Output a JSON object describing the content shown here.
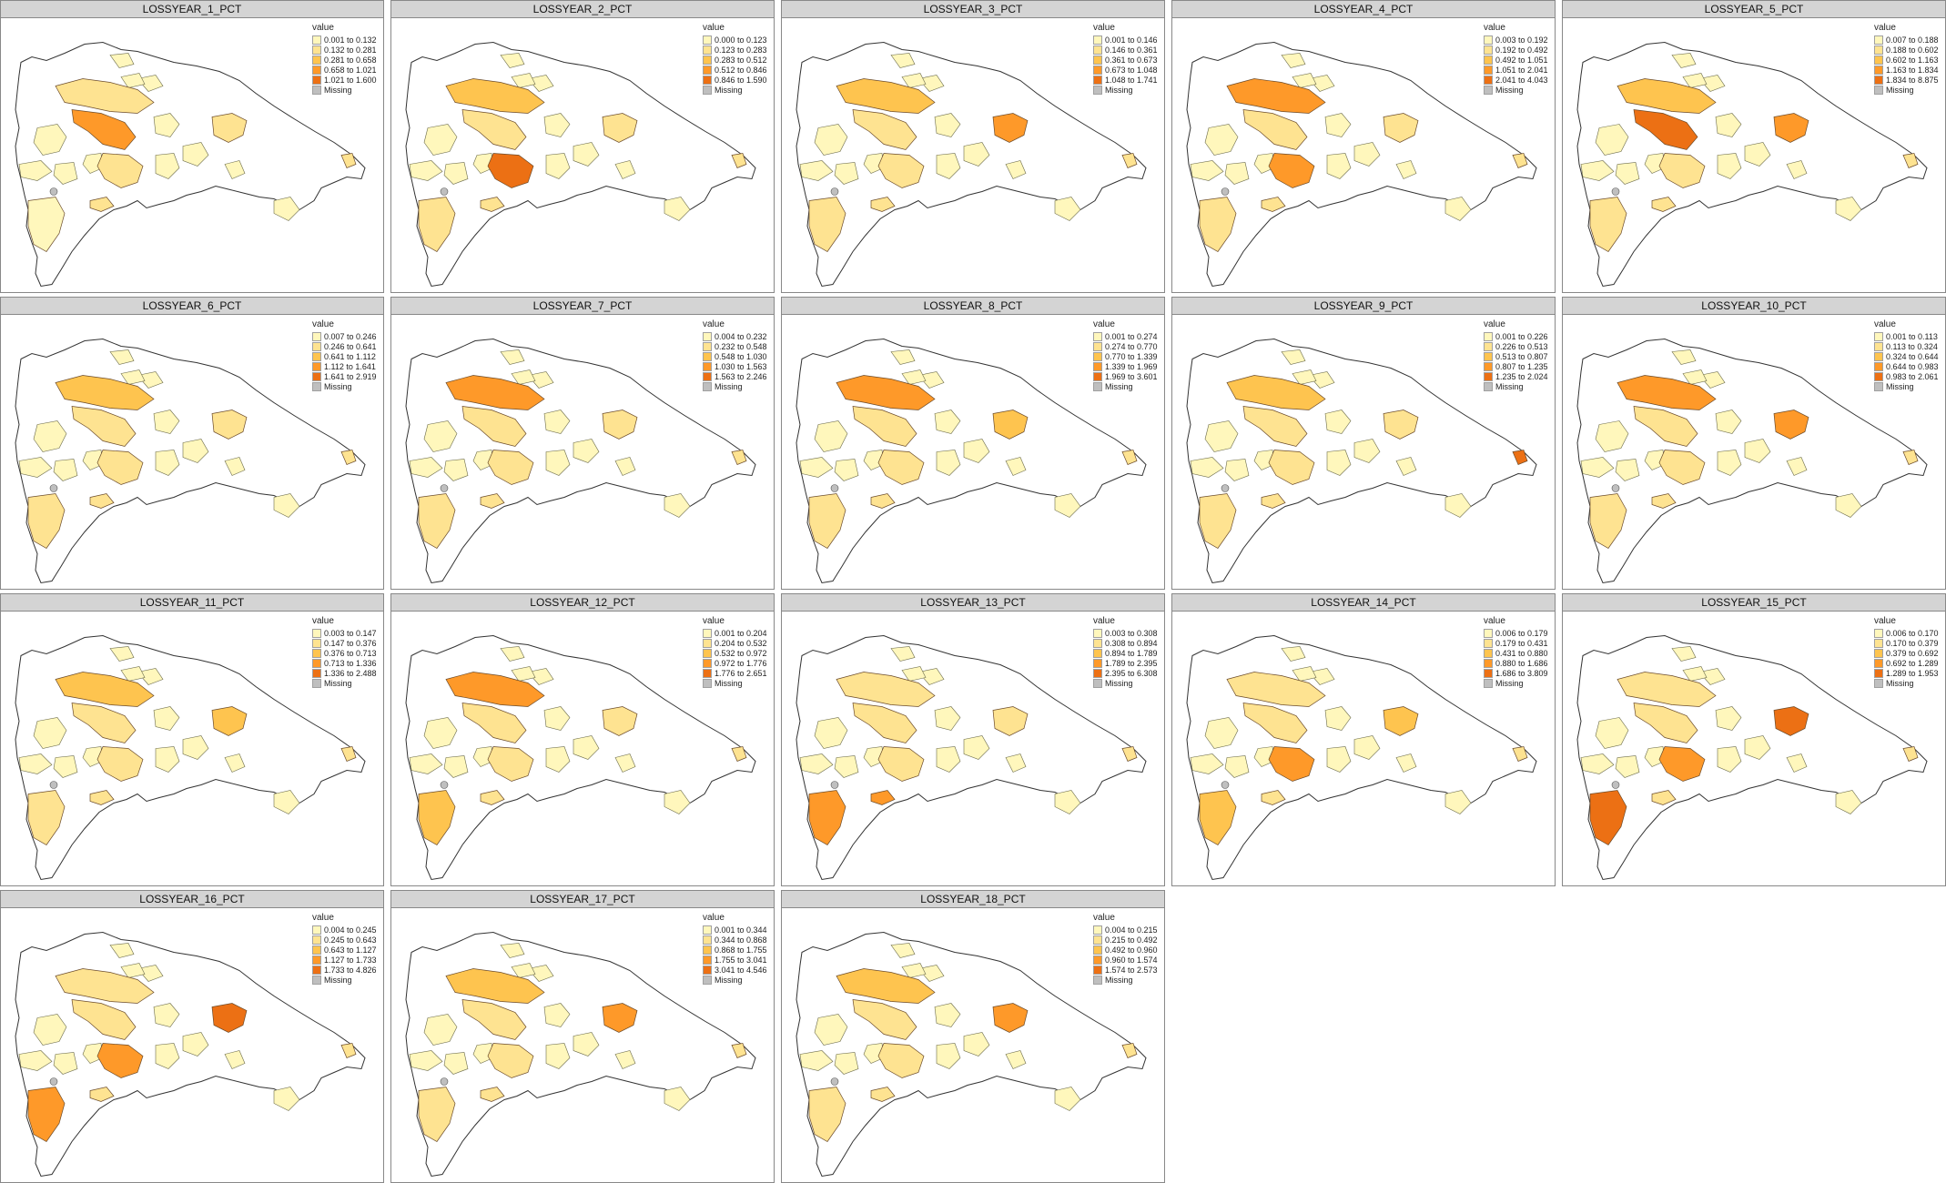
{
  "legend_title": "value",
  "missing_label": "Missing",
  "colors": {
    "class_fills": [
      "#fff7bc",
      "#fee391",
      "#fec44f",
      "#fe9929",
      "#ec7014",
      "#cc4c02"
    ],
    "missing": "#bfbfbf",
    "outline": "#333333",
    "strip_bg": "#d4d4d4"
  },
  "panels": [
    {
      "title": "LOSSYEAR_1_PCT",
      "classes": [
        "0.001 to 0.132",
        "0.132 to 0.281",
        "0.281 to 0.658",
        "0.658 to 1.021",
        "1.021 to 1.600"
      ],
      "highlight": [
        {
          "region": "northwest-valley",
          "class": 3
        },
        {
          "region": "east-central",
          "class": 1
        },
        {
          "region": "southwest-peninsula",
          "class": 0
        }
      ]
    },
    {
      "title": "LOSSYEAR_2_PCT",
      "classes": [
        "0.000 to 0.123",
        "0.123 to 0.283",
        "0.283 to 0.512",
        "0.512 to 0.846",
        "0.846 to 1.590"
      ],
      "highlight": [
        {
          "region": "central",
          "class": 4
        },
        {
          "region": "north-cordillera",
          "class": 2
        }
      ]
    },
    {
      "title": "LOSSYEAR_3_PCT",
      "classes": [
        "0.001 to 0.146",
        "0.146 to 0.361",
        "0.361 to 0.673",
        "0.673 to 1.048",
        "1.048 to 1.741"
      ],
      "highlight": [
        {
          "region": "east-central",
          "class": 3
        },
        {
          "region": "north-cordillera",
          "class": 2
        }
      ]
    },
    {
      "title": "LOSSYEAR_4_PCT",
      "classes": [
        "0.003 to 0.192",
        "0.192 to 0.492",
        "0.492 to 1.051",
        "1.051 to 2.041",
        "2.041 to 4.043"
      ],
      "highlight": [
        {
          "region": "north-cordillera",
          "class": 3
        },
        {
          "region": "central",
          "class": 3
        }
      ]
    },
    {
      "title": "LOSSYEAR_5_PCT",
      "classes": [
        "0.007 to 0.188",
        "0.188 to 0.602",
        "0.602 to 1.163",
        "1.163 to 1.834",
        "1.834 to 8.875"
      ],
      "highlight": [
        {
          "region": "northwest-valley",
          "class": 4
        },
        {
          "region": "east-central",
          "class": 3
        },
        {
          "region": "north-cordillera",
          "class": 2
        }
      ]
    },
    {
      "title": "LOSSYEAR_6_PCT",
      "classes": [
        "0.007 to 0.246",
        "0.246 to 0.641",
        "0.641 to 1.112",
        "1.112 to 1.641",
        "1.641 to 2.919"
      ],
      "highlight": [
        {
          "region": "north-cordillera",
          "class": 2
        },
        {
          "region": "east-central",
          "class": 1
        }
      ]
    },
    {
      "title": "LOSSYEAR_7_PCT",
      "classes": [
        "0.004 to 0.232",
        "0.232 to 0.548",
        "0.548 to 1.030",
        "1.030 to 1.563",
        "1.563 to 2.246"
      ],
      "highlight": [
        {
          "region": "north-cordillera",
          "class": 3
        },
        {
          "region": "southwest-peninsula",
          "class": 1
        }
      ]
    },
    {
      "title": "LOSSYEAR_8_PCT",
      "classes": [
        "0.001 to 0.274",
        "0.274 to 0.770",
        "0.770 to 1.339",
        "1.339 to 1.969",
        "1.969 to 3.601"
      ],
      "highlight": [
        {
          "region": "north-cordillera",
          "class": 3
        },
        {
          "region": "east-central",
          "class": 2
        },
        {
          "region": "southwest-peninsula",
          "class": 1
        }
      ]
    },
    {
      "title": "LOSSYEAR_9_PCT",
      "classes": [
        "0.001 to 0.226",
        "0.226 to 0.513",
        "0.513 to 0.807",
        "0.807 to 1.235",
        "1.235 to 2.024"
      ],
      "highlight": [
        {
          "region": "north-cordillera",
          "class": 2
        },
        {
          "region": "far-east",
          "class": 4
        }
      ]
    },
    {
      "title": "LOSSYEAR_10_PCT",
      "classes": [
        "0.001 to 0.113",
        "0.113 to 0.324",
        "0.324 to 0.644",
        "0.644 to 0.983",
        "0.983 to 2.061"
      ],
      "highlight": [
        {
          "region": "north-cordillera",
          "class": 3
        },
        {
          "region": "east-central",
          "class": 3
        }
      ]
    },
    {
      "title": "LOSSYEAR_11_PCT",
      "classes": [
        "0.003 to 0.147",
        "0.147 to 0.376",
        "0.376 to 0.713",
        "0.713 to 1.336",
        "1.336 to 2.488"
      ],
      "highlight": [
        {
          "region": "north-cordillera",
          "class": 2
        },
        {
          "region": "east-central",
          "class": 2
        }
      ]
    },
    {
      "title": "LOSSYEAR_12_PCT",
      "classes": [
        "0.001 to 0.204",
        "0.204 to 0.532",
        "0.532 to 0.972",
        "0.972 to 1.776",
        "1.776 to 2.651"
      ],
      "highlight": [
        {
          "region": "north-cordillera",
          "class": 3
        },
        {
          "region": "southwest-peninsula",
          "class": 2
        }
      ]
    },
    {
      "title": "LOSSYEAR_13_PCT",
      "classes": [
        "0.003 to 0.308",
        "0.308 to 0.894",
        "0.894 to 1.789",
        "1.789 to 2.395",
        "2.395 to 6.308"
      ],
      "highlight": [
        {
          "region": "southwest-peninsula",
          "class": 3
        },
        {
          "region": "south-coast",
          "class": 3
        }
      ]
    },
    {
      "title": "LOSSYEAR_14_PCT",
      "classes": [
        "0.006 to 0.179",
        "0.179 to 0.431",
        "0.431 to 0.880",
        "0.880 to 1.686",
        "1.686 to 3.809"
      ],
      "highlight": [
        {
          "region": "central",
          "class": 3
        },
        {
          "region": "southwest-peninsula",
          "class": 2
        },
        {
          "region": "east-central",
          "class": 2
        }
      ]
    },
    {
      "title": "LOSSYEAR_15_PCT",
      "classes": [
        "0.006 to 0.170",
        "0.170 to 0.379",
        "0.379 to 0.692",
        "0.692 to 1.289",
        "1.289 to 1.953"
      ],
      "highlight": [
        {
          "region": "southwest-peninsula",
          "class": 4
        },
        {
          "region": "east-central",
          "class": 4
        },
        {
          "region": "central",
          "class": 3
        }
      ]
    },
    {
      "title": "LOSSYEAR_16_PCT",
      "classes": [
        "0.004 to 0.245",
        "0.245 to 0.643",
        "0.643 to 1.127",
        "1.127 to 1.733",
        "1.733 to 4.826"
      ],
      "highlight": [
        {
          "region": "east-central",
          "class": 4
        },
        {
          "region": "central",
          "class": 3
        },
        {
          "region": "southwest-peninsula",
          "class": 3
        }
      ]
    },
    {
      "title": "LOSSYEAR_17_PCT",
      "classes": [
        "0.001 to 0.344",
        "0.344 to 0.868",
        "0.868 to 1.755",
        "1.755 to 3.041",
        "3.041 to 4.546"
      ],
      "highlight": [
        {
          "region": "east-central",
          "class": 3
        },
        {
          "region": "north-cordillera",
          "class": 2
        }
      ]
    },
    {
      "title": "LOSSYEAR_18_PCT",
      "classes": [
        "0.004 to 0.215",
        "0.215 to 0.492",
        "0.492 to 0.960",
        "0.960 to 1.574",
        "1.574 to 2.573"
      ],
      "highlight": [
        {
          "region": "east-central",
          "class": 3
        },
        {
          "region": "north-cordillera",
          "class": 2
        }
      ]
    }
  ]
}
